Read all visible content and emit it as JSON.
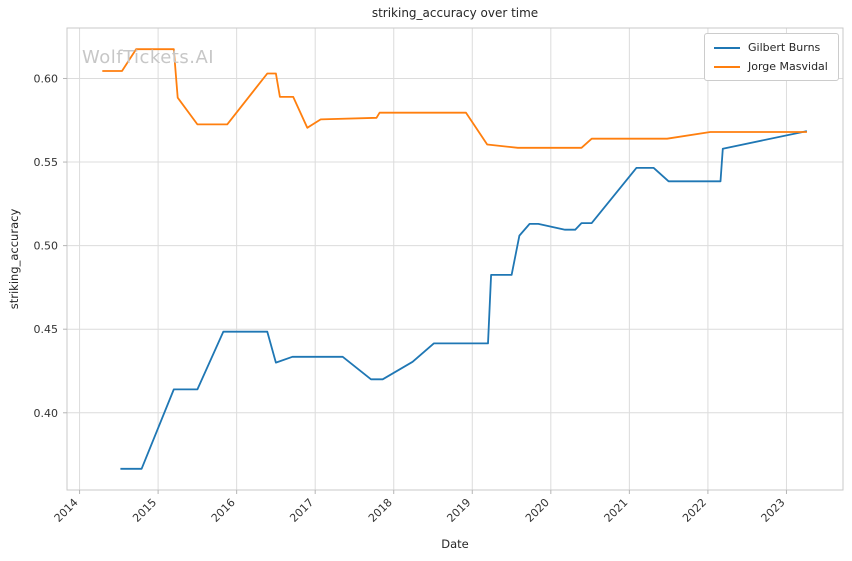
{
  "figure": {
    "watermark": "WolfTickets.AI"
  },
  "chart_data": {
    "type": "line",
    "title": "striking_accuracy over time",
    "xlabel": "Date",
    "ylabel": "striking_accuracy",
    "xlim": [
      2013.84,
      2023.72
    ],
    "ylim": [
      0.3538,
      0.6302
    ],
    "x_ticks": [
      2014,
      2015,
      2016,
      2017,
      2018,
      2019,
      2020,
      2021,
      2022,
      2023
    ],
    "x_tick_labels": [
      "2014",
      "2015",
      "2016",
      "2017",
      "2018",
      "2019",
      "2020",
      "2021",
      "2022",
      "2023"
    ],
    "y_ticks": [
      0.4,
      0.45,
      0.5,
      0.55,
      0.6
    ],
    "y_tick_labels": [
      "0.40",
      "0.45",
      "0.50",
      "0.55",
      "0.60"
    ],
    "grid": true,
    "legend_position": "upper right",
    "colors": {
      "grid": "#dcdcdc",
      "spine": "#c9c9c9",
      "tick": "#b5b5b5"
    },
    "series": [
      {
        "name": "Gilbert Burns",
        "color": "#1f77b4",
        "points": [
          [
            2014.52,
            0.3665
          ],
          [
            2014.79,
            0.3665
          ],
          [
            2015.2,
            0.414
          ],
          [
            2015.5,
            0.414
          ],
          [
            2015.83,
            0.4485
          ],
          [
            2016.39,
            0.4485
          ],
          [
            2016.5,
            0.43
          ],
          [
            2016.71,
            0.4335
          ],
          [
            2017.35,
            0.4335
          ],
          [
            2017.71,
            0.42
          ],
          [
            2017.86,
            0.42
          ],
          [
            2018.24,
            0.4305
          ],
          [
            2018.51,
            0.4415
          ],
          [
            2019.2,
            0.4415
          ],
          [
            2019.24,
            0.4825
          ],
          [
            2019.5,
            0.4825
          ],
          [
            2019.6,
            0.506
          ],
          [
            2019.73,
            0.513
          ],
          [
            2019.84,
            0.513
          ],
          [
            2020.18,
            0.5095
          ],
          [
            2020.31,
            0.5095
          ],
          [
            2020.39,
            0.5135
          ],
          [
            2020.52,
            0.5135
          ],
          [
            2021.09,
            0.5465
          ],
          [
            2021.31,
            0.5465
          ],
          [
            2021.5,
            0.5385
          ],
          [
            2022.16,
            0.5385
          ],
          [
            2022.19,
            0.558
          ],
          [
            2023.26,
            0.5685
          ]
        ]
      },
      {
        "name": "Jorge Masvidal",
        "color": "#ff7f0e",
        "points": [
          [
            2014.29,
            0.6045
          ],
          [
            2014.54,
            0.6045
          ],
          [
            2014.72,
            0.6175
          ],
          [
            2015.2,
            0.6175
          ],
          [
            2015.25,
            0.5885
          ],
          [
            2015.5,
            0.5725
          ],
          [
            2015.88,
            0.5725
          ],
          [
            2016.39,
            0.603
          ],
          [
            2016.5,
            0.603
          ],
          [
            2016.55,
            0.589
          ],
          [
            2016.72,
            0.589
          ],
          [
            2016.9,
            0.5705
          ],
          [
            2017.07,
            0.5755
          ],
          [
            2017.78,
            0.5765
          ],
          [
            2017.82,
            0.5795
          ],
          [
            2018.92,
            0.5795
          ],
          [
            2019.19,
            0.5605
          ],
          [
            2019.58,
            0.5585
          ],
          [
            2020.39,
            0.5585
          ],
          [
            2020.52,
            0.564
          ],
          [
            2021.48,
            0.564
          ],
          [
            2022.03,
            0.568
          ],
          [
            2023.26,
            0.568
          ]
        ]
      }
    ]
  }
}
